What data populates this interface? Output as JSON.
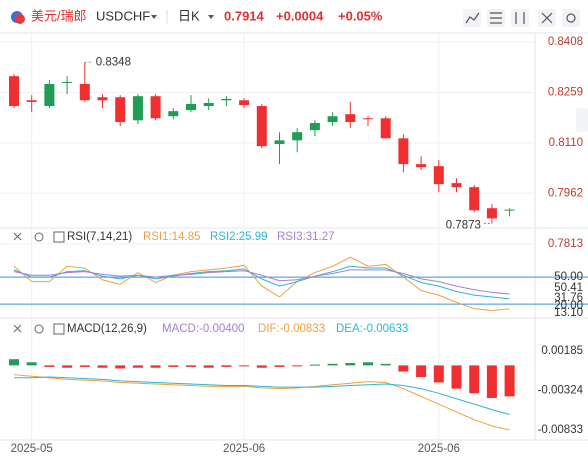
{
  "chart_data": {
    "type": "candlestick",
    "header": {
      "name": "美元/瑞郎",
      "symbol": "USDCHF",
      "period": "日K",
      "price": "0.7914",
      "change": "+0.0004",
      "change_pct": "+0.05%"
    },
    "categories": [
      null,
      "2025-05",
      null,
      null,
      null,
      null,
      null,
      null,
      null,
      null,
      null,
      null,
      null,
      "2025-06",
      null,
      null,
      null,
      null,
      null,
      null,
      null,
      null,
      null,
      null,
      "2025-06",
      null,
      null,
      null,
      null
    ],
    "open": [
      0.8307,
      0.8236,
      0.8219,
      0.8287,
      0.8284,
      0.8245,
      0.8245,
      0.8177,
      0.8248,
      0.8189,
      0.8207,
      0.8219,
      0.8236,
      0.8236,
      0.8219,
      0.8107,
      0.8118,
      0.8148,
      0.8172,
      0.8195,
      0.8183,
      0.8183,
      0.8124,
      0.8048,
      0.8042,
      0.7992,
      0.798,
      0.7918,
      0.7912
    ],
    "high": [
      0.8313,
      0.8251,
      0.8296,
      0.8307,
      0.8348,
      0.8254,
      0.8251,
      0.8254,
      0.8254,
      0.8213,
      0.8251,
      0.8242,
      0.8248,
      0.8242,
      0.8225,
      0.8142,
      0.8154,
      0.8177,
      0.8201,
      0.8231,
      0.8189,
      0.8189,
      0.8136,
      0.8071,
      0.806,
      0.8006,
      0.7986,
      0.793,
      0.7918
    ],
    "low": [
      0.8213,
      0.8201,
      0.8213,
      0.8254,
      0.8231,
      0.8213,
      0.816,
      0.8166,
      0.8177,
      0.818,
      0.8201,
      0.8207,
      0.8219,
      0.8213,
      0.8095,
      0.8048,
      0.8083,
      0.813,
      0.816,
      0.8154,
      0.816,
      0.8124,
      0.8024,
      0.803,
      0.7965,
      0.7965,
      0.7906,
      0.7873,
      0.7894
    ],
    "close": [
      0.8219,
      0.8231,
      0.8284,
      0.829,
      0.8236,
      0.8236,
      0.8172,
      0.8248,
      0.8183,
      0.8204,
      0.8225,
      0.8228,
      0.824,
      0.8222,
      0.8101,
      0.8118,
      0.8142,
      0.8169,
      0.8189,
      0.8172,
      0.818,
      0.8124,
      0.8048,
      0.8039,
      0.7989,
      0.798,
      0.7912,
      0.7888,
      0.7914
    ],
    "up_color": "#1f9d55",
    "down_color": "#f03030",
    "ylim": [
      0.7795,
      0.8443
    ],
    "yticks": [
      0.8408,
      0.8259,
      {
        "value": 0.811,
        "label": "0.8110"
      },
      0.7962,
      0.7813
    ],
    "grid": true,
    "rsi": {
      "title": "RSI(7,14,21)",
      "ylim": [
        8,
        80
      ],
      "levels": [
        50,
        20
      ],
      "level_color": "#3d8fe0",
      "right_labels": [
        "50.00",
        "50.41",
        "31.76",
        "20.00",
        "13.10"
      ],
      "series": [
        {
          "name": "RSI1:14.85",
          "color": "#f0a040",
          "values": [
            62,
            45,
            45,
            62,
            60,
            47,
            42,
            55,
            44,
            52,
            56,
            58,
            60,
            63,
            40,
            28,
            45,
            55,
            62,
            72,
            62,
            64,
            50,
            35,
            30,
            22,
            15,
            13,
            14.85
          ]
        },
        {
          "name": "RSI2:25.99",
          "color": "#2bb6d6",
          "values": [
            58,
            50,
            50,
            56,
            57,
            51,
            48,
            52,
            48,
            51,
            54,
            56,
            57,
            59,
            48,
            40,
            45,
            51,
            56,
            62,
            60,
            60,
            52,
            44,
            40,
            34,
            30,
            28,
            25.99
          ]
        },
        {
          "name": "RSI3:31.27",
          "color": "#a57fd6",
          "values": [
            56,
            52,
            52,
            55,
            56,
            53,
            51,
            52,
            50,
            52,
            53,
            55,
            56,
            57,
            52,
            46,
            47,
            51,
            54,
            58,
            58,
            58,
            54,
            48,
            45,
            40,
            36,
            33,
            31.27
          ]
        }
      ]
    },
    "macd": {
      "title": "MACD(12,26,9)",
      "ylim": [
        -0.00962,
        0.00585
      ],
      "yticks": [
        0.00185,
        -0.00324,
        -0.00833
      ],
      "hist": {
        "name": "MACD:-0.00400",
        "color": "#a57fd6",
        "values": [
          0.0008,
          0.0004,
          -0.0002,
          -0.0003,
          -0.0002,
          -0.0003,
          -0.0004,
          -0.0003,
          -0.0003,
          -0.0002,
          -0.0002,
          -0.0003,
          -0.0002,
          -0.0001,
          -0.0003,
          -0.0002,
          -0.0001,
          0.0001,
          0.0002,
          0.0003,
          0.0004,
          0.0002,
          -0.0008,
          -0.0015,
          -0.0022,
          -0.003,
          -0.0036,
          -0.0042,
          -0.004
        ]
      },
      "series": [
        {
          "name": "DIF:-0.00833",
          "color": "#f0a040",
          "values": [
            -0.0012,
            -0.0014,
            -0.0016,
            -0.0018,
            -0.0019,
            -0.002,
            -0.0022,
            -0.0023,
            -0.0024,
            -0.0025,
            -0.0026,
            -0.0027,
            -0.0027,
            -0.0027,
            -0.0029,
            -0.003,
            -0.0029,
            -0.0027,
            -0.0025,
            -0.0023,
            -0.0021,
            -0.0022,
            -0.003,
            -0.004,
            -0.005,
            -0.006,
            -0.007,
            -0.0078,
            -0.00833
          ]
        },
        {
          "name": "DEA:-0.00633",
          "color": "#2bb6d6",
          "values": [
            -0.0016,
            -0.0016,
            -0.0015,
            -0.0016,
            -0.0017,
            -0.0018,
            -0.002,
            -0.0021,
            -0.0022,
            -0.0023,
            -0.0024,
            -0.0025,
            -0.0026,
            -0.0026,
            -0.0027,
            -0.0028,
            -0.0028,
            -0.0028,
            -0.0027,
            -0.0026,
            -0.0025,
            -0.0024,
            -0.0026,
            -0.003,
            -0.0036,
            -0.0043,
            -0.005,
            -0.0057,
            -0.00633
          ]
        }
      ]
    }
  }
}
